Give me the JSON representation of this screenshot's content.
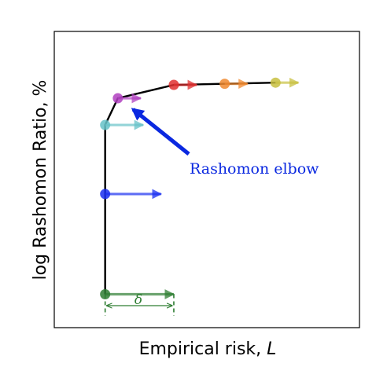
{
  "chart_data": {
    "type": "line",
    "title": "",
    "xlabel": "Empirical risk, ",
    "xlabel_symbol": "L",
    "ylabel": "log Rashomon Ratio, %",
    "ticks": "none",
    "grid": false,
    "points": [
      {
        "x": 0.0,
        "y": 0.0,
        "color": "#2e7d32",
        "arrow_length": 1.35
      },
      {
        "x": 0.0,
        "y": 0.45,
        "color": "#1a2ff0",
        "arrow_length": 1.1
      },
      {
        "x": 0.0,
        "y": 0.76,
        "color": "#66c2c8",
        "arrow_length": 0.75
      },
      {
        "x": 0.25,
        "y": 0.88,
        "color": "#b040c0",
        "arrow_length": 0.45
      },
      {
        "x": 1.35,
        "y": 0.94,
        "color": "#e03030",
        "arrow_length": 0.45
      },
      {
        "x": 2.35,
        "y": 0.945,
        "color": "#f08a30",
        "arrow_length": 0.45
      },
      {
        "x": 3.35,
        "y": 0.95,
        "color": "#c8c040",
        "arrow_length": 0.45
      }
    ],
    "line_color": "#000000",
    "xlim": [
      -1.0,
      5.0
    ],
    "ylim": [
      -0.15,
      1.18
    ],
    "annotation": {
      "text": "Rashomon elbow",
      "color": "#0a28e0",
      "arrow_target": {
        "x": 0.55,
        "y": 0.83
      }
    },
    "delta": {
      "label": "δ",
      "from_x": 0.0,
      "to_x": 1.35,
      "color": "#2e7d32"
    }
  }
}
